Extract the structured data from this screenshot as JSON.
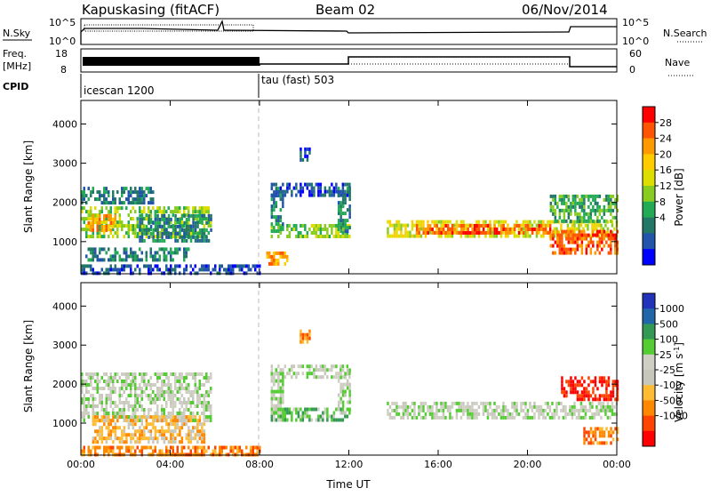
{
  "header": {
    "station": "Kapuskasing (fitACF)",
    "beam": "Beam 02",
    "date": "06/Nov/2014"
  },
  "top_panels": {
    "nsky_label": "N.Sky",
    "nsky_ticks": [
      "10^5",
      "10^0"
    ],
    "nsearch_label": "N.Search",
    "nsearch_ticks": [
      "10^5",
      "10^0"
    ],
    "freq_label": "Freq.",
    "freq_unit": "[MHz]",
    "freq_ticks": [
      "18",
      "8"
    ],
    "nave_label": "Nave",
    "nave_ticks": [
      "60",
      "0"
    ],
    "cpid_label": "CPID",
    "cpid_segments": [
      {
        "label": "icescan 1200",
        "start_hour": 0,
        "end_hour": 8
      },
      {
        "label": "tau (fast) 503",
        "start_hour": 8,
        "end_hour": 24
      }
    ]
  },
  "chart_data": [
    {
      "type": "heatmap",
      "title": "",
      "xlabel": "Time UT",
      "ylabel": "Slant Range [km]",
      "x_range_hours": [
        0,
        24
      ],
      "ylim": [
        180,
        4600
      ],
      "x_ticks": [
        "00:00",
        "04:00",
        "08:00",
        "12:00",
        "16:00",
        "20:00",
        "00:00"
      ],
      "y_ticks": [
        1000,
        2000,
        3000,
        4000
      ],
      "colorbar": {
        "label": "Power [dB]",
        "ticks": [
          "28",
          "24",
          "20",
          "16",
          "12",
          "8",
          "4"
        ],
        "colors": [
          "#ff0000",
          "#ff5500",
          "#ff9900",
          "#ffcc00",
          "#dddd00",
          "#88cc22",
          "#22aa55",
          "#227766",
          "#2255aa",
          "#0000ff"
        ]
      },
      "regions": [
        {
          "t0": 0.0,
          "t1": 5.8,
          "r0": 1150,
          "r1": 1900,
          "level": 5
        },
        {
          "t0": 0.3,
          "t1": 1.5,
          "r0": 1300,
          "r1": 1700,
          "level": 2
        },
        {
          "t0": 0.0,
          "t1": 3.2,
          "r0": 2000,
          "r1": 2400,
          "level": 7
        },
        {
          "t0": 0.2,
          "t1": 4.8,
          "r0": 550,
          "r1": 850,
          "level": 7
        },
        {
          "t0": 0.0,
          "t1": 8.0,
          "r0": 200,
          "r1": 420,
          "level": 8
        },
        {
          "t0": 2.5,
          "t1": 5.8,
          "r0": 1000,
          "r1": 1700,
          "level": 7
        },
        {
          "t0": 8.5,
          "t1": 12.0,
          "r0": 1100,
          "r1": 1450,
          "level": 5
        },
        {
          "t0": 8.5,
          "t1": 12.0,
          "r0": 2200,
          "r1": 2500,
          "level": 8
        },
        {
          "t0": 8.5,
          "t1": 9.0,
          "r0": 1300,
          "r1": 2400,
          "level": 7
        },
        {
          "t0": 11.5,
          "t1": 12.0,
          "r0": 1300,
          "r1": 2400,
          "level": 7
        },
        {
          "t0": 8.3,
          "t1": 9.2,
          "r0": 450,
          "r1": 750,
          "level": 2
        },
        {
          "t0": 13.7,
          "t1": 24.0,
          "r0": 1150,
          "r1": 1550,
          "level": 4
        },
        {
          "t0": 15.0,
          "t1": 21.0,
          "r0": 1200,
          "r1": 1450,
          "level": 1
        },
        {
          "t0": 21.0,
          "t1": 24.0,
          "r0": 700,
          "r1": 1300,
          "level": 1
        },
        {
          "t0": 21.0,
          "t1": 24.0,
          "r0": 1500,
          "r1": 2200,
          "level": 6
        },
        {
          "t0": 9.8,
          "t1": 10.2,
          "r0": 3100,
          "r1": 3400,
          "level": 8
        }
      ]
    },
    {
      "type": "heatmap",
      "title": "",
      "xlabel": "Time UT",
      "ylabel": "Slant Range [km]",
      "x_range_hours": [
        0,
        24
      ],
      "ylim": [
        180,
        4600
      ],
      "x_ticks": [
        "00:00",
        "04:00",
        "08:00",
        "12:00",
        "16:00",
        "20:00",
        "00:00"
      ],
      "y_ticks": [
        1000,
        2000,
        3000,
        4000
      ],
      "colorbar": {
        "label": "Velocity [m s^-1]",
        "ticks": [
          "1000",
          "500",
          "100",
          "25",
          "-25",
          "-100",
          "-500",
          "-1000"
        ],
        "colors": [
          "#2233bb",
          "#2266aa",
          "#339955",
          "#55cc33",
          "#cfcfc4",
          "#c7c7bc",
          "#ffbb33",
          "#ff8800",
          "#ff4400",
          "#ff0000"
        ]
      },
      "regions": [
        {
          "t0": 0.0,
          "t1": 5.8,
          "r0": 1100,
          "r1": 2300,
          "level": 4
        },
        {
          "t0": 0.5,
          "t1": 5.5,
          "r0": 500,
          "r1": 1200,
          "level": 6
        },
        {
          "t0": 0.0,
          "t1": 8.0,
          "r0": 200,
          "r1": 420,
          "level": 7
        },
        {
          "t0": 8.5,
          "t1": 12.0,
          "r0": 2200,
          "r1": 2500,
          "level": 4
        },
        {
          "t0": 8.5,
          "t1": 12.0,
          "r0": 1100,
          "r1": 1400,
          "level": 3
        },
        {
          "t0": 8.5,
          "t1": 9.0,
          "r0": 1300,
          "r1": 2400,
          "level": 4
        },
        {
          "t0": 11.5,
          "t1": 12.0,
          "r0": 1300,
          "r1": 2400,
          "level": 4
        },
        {
          "t0": 13.7,
          "t1": 24.0,
          "r0": 1150,
          "r1": 1550,
          "level": 4
        },
        {
          "t0": 21.5,
          "t1": 24.0,
          "r0": 1600,
          "r1": 2200,
          "level": 9
        },
        {
          "t0": 22.5,
          "t1": 24.0,
          "r0": 500,
          "r1": 900,
          "level": 7
        },
        {
          "t0": 9.8,
          "t1": 10.2,
          "r0": 3100,
          "r1": 3400,
          "level": 7
        }
      ]
    }
  ]
}
